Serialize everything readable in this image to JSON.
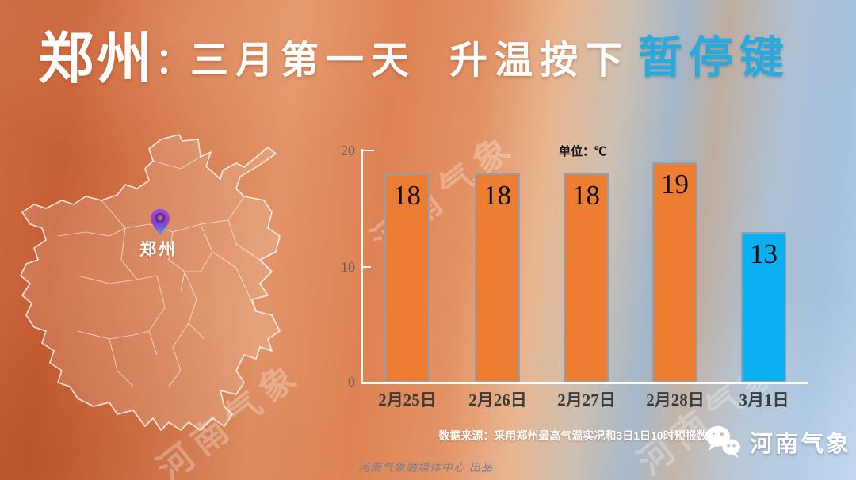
{
  "title": {
    "city": "郑州",
    "colon": "：",
    "line1": "三月第一天",
    "line2": "升温按下",
    "highlight": "暂停键"
  },
  "map": {
    "region_name": "河南",
    "pin_label": "郑州"
  },
  "chart_data": {
    "type": "bar",
    "title": "",
    "unit_label": "单位：℃",
    "categories": [
      "2月25日",
      "2月26日",
      "2月27日",
      "2月28日",
      "3月1日"
    ],
    "values": [
      18,
      18,
      18,
      19,
      13
    ],
    "bar_colors": [
      "#ED7D31",
      "#ED7D31",
      "#ED7D31",
      "#ED7D31",
      "#0BB0F0"
    ],
    "ylim": [
      0,
      20
    ],
    "yticks": [
      20,
      10,
      0
    ],
    "ytick_labels": [
      "20",
      "10",
      "0"
    ],
    "grid": false,
    "legend_position": "none",
    "value_label_position": "inside-top"
  },
  "source_note": "数据来源：采用郑州最高气温实况和3日1日10时预报数据",
  "watermark_text": "河南气象",
  "credit_line": "河南气象融媒体中心 出品",
  "footer_logo": {
    "icon": "wechat-icon",
    "label": "河南气象"
  },
  "colors": {
    "accent_blue": "#29A9DC",
    "bar_orange": "#ED7D31",
    "bar_blue": "#0BB0F0",
    "bar_border": "#8EA0B8",
    "axis_white": "#FFFFFF"
  }
}
